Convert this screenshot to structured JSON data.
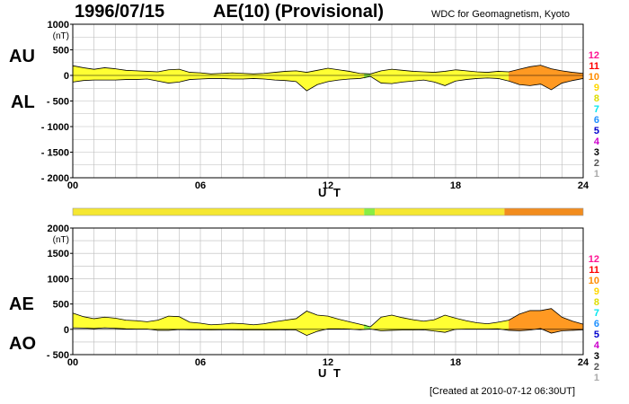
{
  "header": {
    "date": "1996/07/15",
    "title": "AE(10) (Provisional)",
    "source": "WDC for Geomagnetism, Kyoto"
  },
  "footer": {
    "created": "[Created at 2010-07-12 06:30UT]"
  },
  "labels": {
    "au": "AU",
    "al": "AL",
    "ae": "AE",
    "ao": "AO",
    "ut": "U T",
    "unit": "(nT)"
  },
  "scale_legend": {
    "levels": [
      "12",
      "11",
      "10",
      "9",
      "8",
      "7",
      "6",
      "5",
      "4",
      "3",
      "2",
      "1"
    ],
    "colors": [
      "#ff1493",
      "#ff0000",
      "#ff8c00",
      "#ffd700",
      "#dddd00",
      "#00e5ee",
      "#1e90ff",
      "#0000cd",
      "#cc00cc",
      "#000000",
      "#555555",
      "#aaaaaa"
    ]
  },
  "chart_data": [
    {
      "type": "area",
      "name": "AU/AL",
      "x_ticks": [
        "00",
        "06",
        "12",
        "18",
        "24"
      ],
      "y_ticks": [
        "1000",
        "500",
        "0",
        "- 500",
        "- 1000",
        "- 1500",
        "- 2000"
      ],
      "xlim": [
        0,
        24
      ],
      "ylim": [
        -2000,
        1000
      ],
      "grid": true,
      "x": [
        0,
        0.5,
        1,
        1.5,
        2,
        2.5,
        3,
        3.5,
        4,
        4.5,
        5,
        5.5,
        6,
        6.5,
        7,
        7.5,
        8,
        8.5,
        9,
        9.5,
        10,
        10.5,
        11,
        11.5,
        12,
        12.5,
        13,
        13.5,
        14,
        14.5,
        15,
        15.5,
        16,
        16.5,
        17,
        17.5,
        18,
        18.5,
        19,
        19.5,
        20,
        20.5,
        21,
        21.5,
        22,
        22.5,
        23,
        23.5,
        24
      ],
      "series": [
        {
          "values": [
            190,
            150,
            120,
            150,
            130,
            100,
            90,
            80,
            70,
            110,
            120,
            60,
            50,
            30,
            40,
            50,
            40,
            30,
            40,
            60,
            80,
            90,
            60,
            100,
            140,
            110,
            80,
            40,
            30,
            90,
            120,
            100,
            80,
            70,
            60,
            80,
            110,
            90,
            70,
            60,
            80,
            70,
            120,
            170,
            200,
            130,
            90,
            60,
            40
          ]
        },
        {
          "values": [
            -130,
            -100,
            -90,
            -90,
            -90,
            -80,
            -80,
            -70,
            -110,
            -150,
            -130,
            -80,
            -70,
            -60,
            -60,
            -70,
            -70,
            -60,
            -70,
            -90,
            -100,
            -120,
            -300,
            -180,
            -120,
            -90,
            -70,
            -60,
            -20,
            -150,
            -160,
            -130,
            -110,
            -90,
            -130,
            -200,
            -110,
            -80,
            -60,
            -50,
            -60,
            -110,
            -180,
            -200,
            -170,
            -280,
            -150,
            -100,
            -60
          ]
        }
      ],
      "band_hours": [
        13.7,
        14.2
      ],
      "band_colors": {
        "before": "#ffff33",
        "active": "#88ee44",
        "after": "#ff9922",
        "after_start": 20.3,
        "after_end": 23.3
      }
    },
    {
      "type": "area",
      "name": "AE/AO",
      "x_ticks": [
        "00",
        "06",
        "12",
        "18",
        "24"
      ],
      "y_ticks": [
        "2000",
        "1500",
        "1000",
        "500",
        "0",
        "- 500"
      ],
      "xlim": [
        0,
        24
      ],
      "ylim": [
        -500,
        2000
      ],
      "grid": true,
      "x": [
        0,
        0.5,
        1,
        1.5,
        2,
        2.5,
        3,
        3.5,
        4,
        4.5,
        5,
        5.5,
        6,
        6.5,
        7,
        7.5,
        8,
        8.5,
        9,
        9.5,
        10,
        10.5,
        11,
        11.5,
        12,
        12.5,
        13,
        13.5,
        14,
        14.5,
        15,
        15.5,
        16,
        16.5,
        17,
        17.5,
        18,
        18.5,
        19,
        19.5,
        20,
        20.5,
        21,
        21.5,
        22,
        22.5,
        23,
        23.5,
        24
      ],
      "series": [
        {
          "values": [
            320,
            250,
            210,
            240,
            220,
            180,
            170,
            150,
            180,
            260,
            250,
            140,
            120,
            90,
            100,
            120,
            110,
            90,
            110,
            150,
            180,
            210,
            360,
            280,
            260,
            200,
            150,
            100,
            50,
            240,
            280,
            230,
            190,
            160,
            190,
            280,
            220,
            170,
            130,
            110,
            140,
            180,
            300,
            370,
            370,
            410,
            240,
            160,
            100
          ]
        },
        {
          "values": [
            30,
            25,
            15,
            30,
            20,
            10,
            5,
            5,
            -20,
            -20,
            -5,
            -10,
            -10,
            -15,
            -10,
            -10,
            -15,
            -15,
            -15,
            -15,
            -10,
            -15,
            -120,
            -40,
            10,
            10,
            5,
            -10,
            5,
            -30,
            -20,
            -15,
            -15,
            -10,
            -35,
            -60,
            0,
            5,
            5,
            5,
            10,
            -20,
            -30,
            -15,
            15,
            -75,
            -30,
            -20,
            -10
          ]
        }
      ]
    }
  ],
  "activity_bar": [
    {
      "from": 0,
      "to": 13.7,
      "color": "#f5e732"
    },
    {
      "from": 13.7,
      "to": 14.2,
      "color": "#88ee44"
    },
    {
      "from": 14.2,
      "to": 20.3,
      "color": "#f5e732"
    },
    {
      "from": 20.3,
      "to": 24,
      "color": "#f28c1e"
    }
  ]
}
